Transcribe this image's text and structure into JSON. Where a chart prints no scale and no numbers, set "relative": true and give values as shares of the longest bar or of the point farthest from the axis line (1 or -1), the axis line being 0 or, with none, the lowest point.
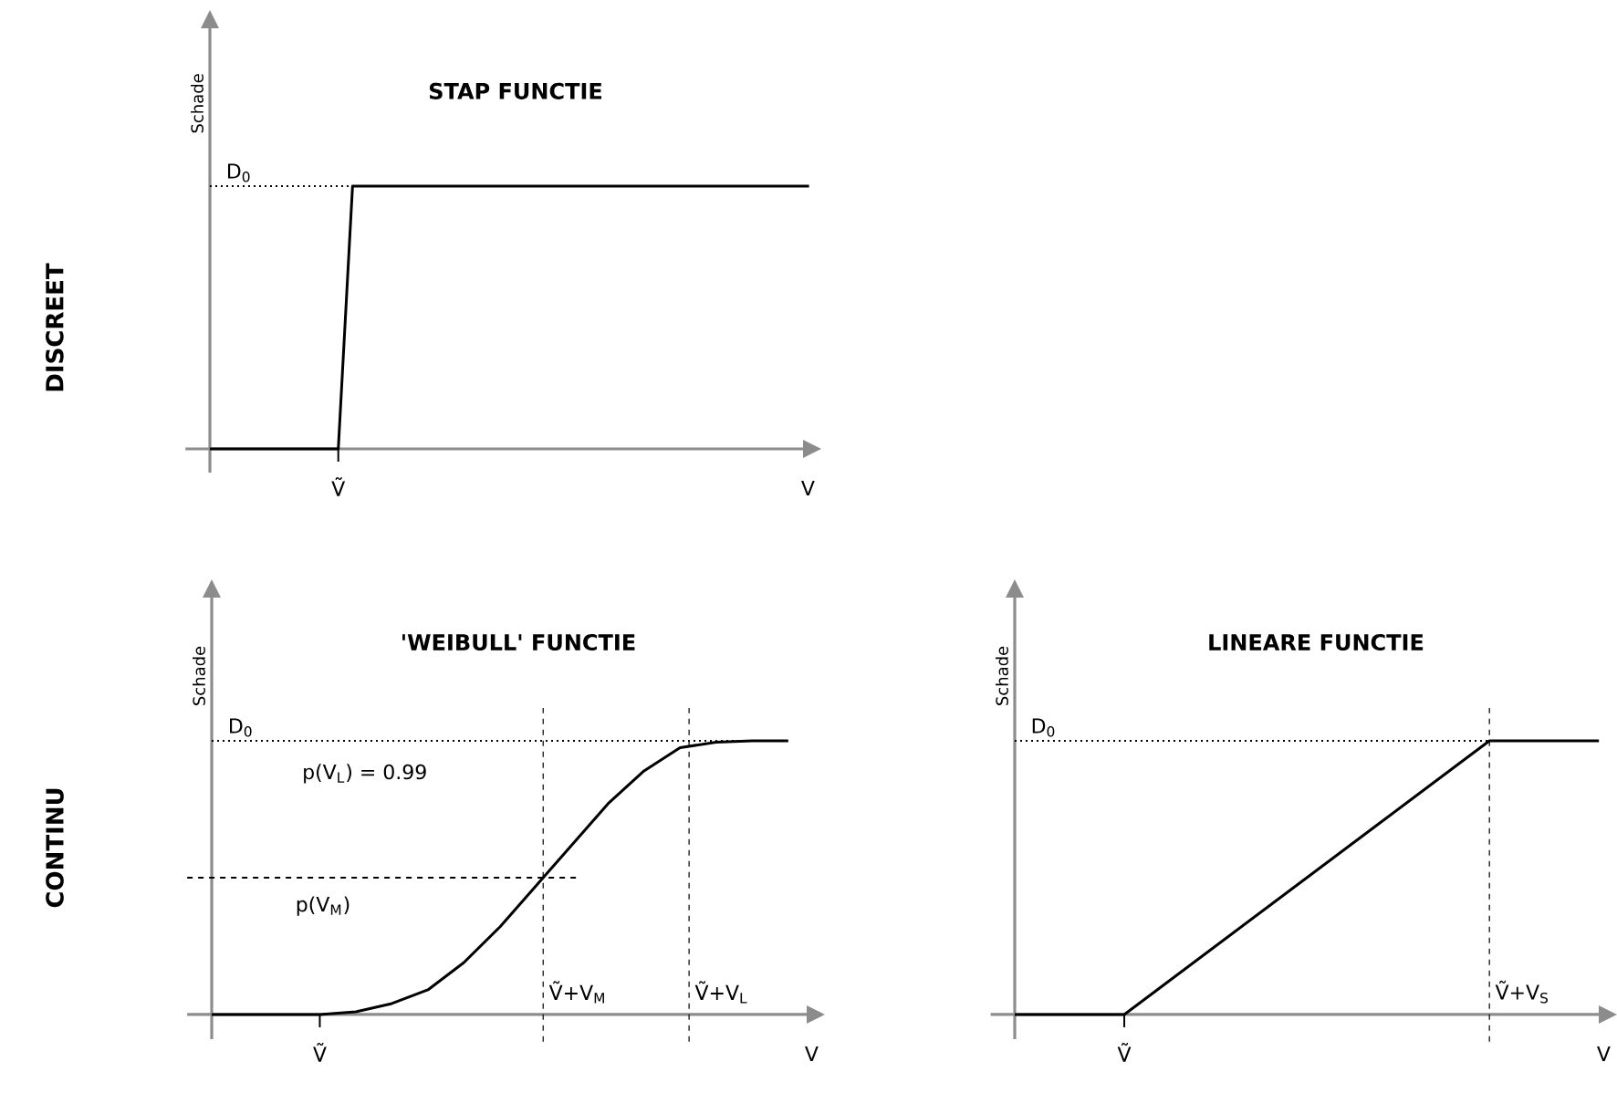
{
  "chart_data": [
    {
      "type": "line",
      "title": "STAP FUNCTIE",
      "ylabel": "Schade",
      "xlabel": "V",
      "relative": true,
      "categories": [
        null,
        null,
        null,
        null,
        null,
        null,
        null,
        null,
        null,
        null,
        null,
        null,
        null,
        null,
        null,
        null,
        null,
        null,
        null,
        null,
        null,
        null,
        null,
        null,
        null,
        null,
        null,
        null,
        null,
        null,
        null,
        null,
        null,
        null,
        null,
        null,
        null,
        null,
        null,
        null,
        null,
        null,
        null
      ],
      "series": [
        {
          "color": "#000000",
          "values": [
            0,
            0,
            0,
            0,
            0,
            0,
            0,
            0,
            0,
            0,
            1,
            1,
            1,
            1,
            1,
            1,
            1,
            1,
            1,
            1,
            1,
            1,
            1,
            1,
            1,
            1,
            1,
            1,
            1,
            1,
            1,
            1,
            1,
            1,
            1,
            1,
            1,
            1,
            1,
            1,
            1,
            1,
            1
          ]
        }
      ],
      "ref_lines": [
        {
          "axis": "y",
          "value": 1,
          "label": "D$_{0}$",
          "color": "#000000",
          "line_style": "dotted"
        }
      ],
      "annotations": [
        "DISCREET",
        "Ṽ"
      ]
    },
    {
      "type": "line",
      "title": "'WEIBULL' FUNCTIE",
      "ylabel": "Schade",
      "xlabel": "V",
      "relative": true,
      "categories": [
        null,
        null,
        null,
        null,
        null,
        null,
        null,
        null,
        null,
        null,
        null,
        null,
        null,
        null,
        null,
        null,
        null
      ],
      "series": [
        {
          "color": "#000000",
          "values": [
            0,
            0,
            0,
            0,
            0.01,
            0.04,
            0.09,
            0.19,
            0.32,
            0.47,
            0.62,
            0.77,
            0.89,
            0.975,
            0.995,
            1,
            1
          ]
        }
      ],
      "ref_lines": [
        {
          "axis": "y",
          "value": 1,
          "label": "D$_{0}$",
          "color": "#000000",
          "line_style": "dotted"
        },
        {
          "axis": "y",
          "value": 0.5,
          "label": "p(V$_{M}$)",
          "color": "#000000",
          "line_style": "dashed"
        }
      ],
      "annotations": [
        "CONTINU",
        "p(V$_{L}$)  = 0.99",
        "Ṽ",
        "Ṽ+V$_{M}$",
        "Ṽ+V$_{L}$"
      ]
    },
    {
      "type": "line",
      "title": "LINEARE  FUNCTIE",
      "ylabel": "Schade",
      "xlabel": "V",
      "relative": true,
      "categories": [
        null,
        null,
        null,
        null,
        null,
        null,
        null,
        null,
        null,
        null,
        null,
        null,
        null,
        null,
        null,
        null,
        null
      ],
      "series": [
        {
          "color": "#000000",
          "values": [
            0,
            0,
            0,
            0,
            0.1,
            0.2,
            0.3,
            0.4,
            0.5,
            0.6,
            0.7,
            0.8,
            0.9,
            1,
            1,
            1,
            1
          ]
        }
      ],
      "ref_lines": [
        {
          "axis": "y",
          "value": 1,
          "label": "D$_{0}$",
          "color": "#000000",
          "line_style": "dotted"
        }
      ],
      "annotations": [
        "Ṽ",
        "Ṽ+V$_{S}$"
      ]
    }
  ]
}
